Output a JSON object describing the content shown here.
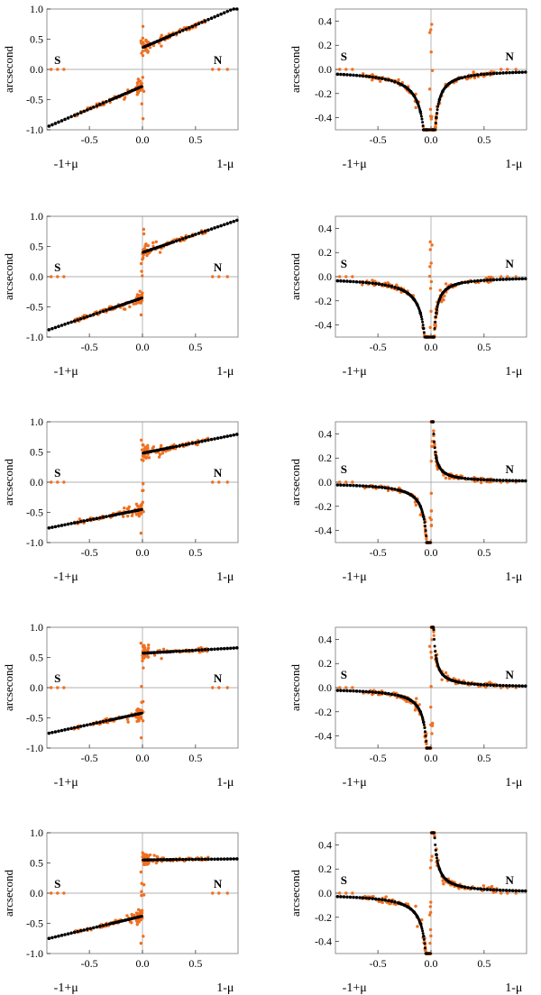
{
  "figure": {
    "ylabel": "arcsecond",
    "left_endpoint": "-1+μ",
    "right_endpoint": "1-μ",
    "south_marker": "S",
    "north_marker": "N",
    "colors": {
      "data": "#f07020",
      "model": "#000000",
      "axis": "#999999",
      "frame": "#777777"
    }
  },
  "chart_data": [
    {
      "type": "scatter",
      "panel": "row1-left",
      "ylabel": "arcsecond",
      "xlim": [
        -0.9,
        0.9
      ],
      "ylim": [
        -1.0,
        1.0
      ],
      "x_ticks": [
        -0.5,
        0.0,
        0.5
      ],
      "x_tick_labels": [
        "-0.5",
        "0.0",
        "0.5"
      ],
      "y_ticks": [
        -1.0,
        -0.5,
        0.0,
        0.5,
        1.0
      ],
      "y_tick_labels": [
        "-1.0",
        "-0.5",
        "0.0",
        "0.5",
        "1.0"
      ],
      "model": {
        "kind": "linear",
        "left_intercept": -0.28,
        "right_intercept": 0.36,
        "slope": 0.75
      },
      "markers": [
        {
          "text": "S",
          "x": -0.8,
          "y": 0.06
        },
        {
          "text": "N",
          "x": 0.71,
          "y": 0.06
        }
      ],
      "xlabel_left": "-1+μ",
      "xlabel_right": "1-μ"
    },
    {
      "type": "scatter",
      "panel": "row1-right",
      "ylabel": "arcsecond",
      "xlim": [
        -0.9,
        0.9
      ],
      "ylim": [
        -0.5,
        0.5
      ],
      "x_ticks": [
        -0.5,
        0.0,
        0.5
      ],
      "x_tick_labels": [
        "-0.5",
        "0.0",
        "0.5"
      ],
      "y_ticks": [
        -0.4,
        -0.2,
        0.0,
        0.2,
        0.4
      ],
      "y_tick_labels": [
        "-0.4",
        "-0.2",
        "0.0",
        "0.2",
        "0.4"
      ],
      "model": {
        "kind": "cusp",
        "left_amp": -0.035,
        "right_amp": -0.02
      },
      "markers": [
        {
          "text": "S",
          "x": -0.82,
          "y": 0.06
        },
        {
          "text": "N",
          "x": 0.74,
          "y": 0.06
        }
      ],
      "xlabel_left": "-1+μ",
      "xlabel_right": "1-μ"
    },
    {
      "type": "scatter",
      "panel": "row2-left",
      "ylabel": "arcsecond",
      "xlim": [
        -0.9,
        0.9
      ],
      "ylim": [
        -1.0,
        1.0
      ],
      "x_ticks": [
        -0.5,
        0.0,
        0.5
      ],
      "x_tick_labels": [
        "-0.5",
        "0.0",
        "0.5"
      ],
      "y_ticks": [
        -1.0,
        -0.5,
        0.0,
        0.5,
        1.0
      ],
      "y_tick_labels": [
        "-1.0",
        "-0.5",
        "0.0",
        "0.5",
        "1.0"
      ],
      "model": {
        "kind": "linear",
        "left_intercept": -0.35,
        "right_intercept": 0.4,
        "slope": 0.6
      },
      "markers": [
        {
          "text": "S",
          "x": -0.8,
          "y": 0.06
        },
        {
          "text": "N",
          "x": 0.71,
          "y": 0.06
        }
      ],
      "xlabel_left": "-1+μ",
      "xlabel_right": "1-μ"
    },
    {
      "type": "scatter",
      "panel": "row2-right",
      "ylabel": "arcsecond",
      "xlim": [
        -0.9,
        0.9
      ],
      "ylim": [
        -0.5,
        0.5
      ],
      "x_ticks": [
        -0.5,
        0.0,
        0.5
      ],
      "x_tick_labels": [
        "-0.5",
        "0.0",
        "0.5"
      ],
      "y_ticks": [
        -0.4,
        -0.2,
        0.0,
        0.2,
        0.4
      ],
      "y_tick_labels": [
        "-0.4",
        "-0.2",
        "0.0",
        "0.2",
        "0.4"
      ],
      "model": {
        "kind": "cusp",
        "left_amp": -0.03,
        "right_amp": -0.015
      },
      "markers": [
        {
          "text": "S",
          "x": -0.82,
          "y": 0.06
        },
        {
          "text": "N",
          "x": 0.74,
          "y": 0.06
        }
      ],
      "xlabel_left": "-1+μ",
      "xlabel_right": "1-μ"
    },
    {
      "type": "scatter",
      "panel": "row3-left",
      "ylabel": "arcsecond",
      "xlim": [
        -0.9,
        0.9
      ],
      "ylim": [
        -1.0,
        1.0
      ],
      "x_ticks": [
        -0.5,
        0.0,
        0.5
      ],
      "x_tick_labels": [
        "-0.5",
        "0.0",
        "0.5"
      ],
      "y_ticks": [
        -1.0,
        -0.5,
        0.0,
        0.5,
        1.0
      ],
      "y_tick_labels": [
        "-1.0",
        "-0.5",
        "0.0",
        "0.5",
        "1.0"
      ],
      "model": {
        "kind": "linear",
        "left_intercept": -0.45,
        "right_intercept": 0.48,
        "slope": 0.35
      },
      "markers": [
        {
          "text": "S",
          "x": -0.8,
          "y": 0.06
        },
        {
          "text": "N",
          "x": 0.71,
          "y": 0.06
        }
      ],
      "xlabel_left": "-1+μ",
      "xlabel_right": "1-μ"
    },
    {
      "type": "scatter",
      "panel": "row3-right",
      "ylabel": "arcsecond",
      "xlim": [
        -0.9,
        0.9
      ],
      "ylim": [
        -0.5,
        0.5
      ],
      "x_ticks": [
        -0.5,
        0.0,
        0.5
      ],
      "x_tick_labels": [
        "-0.5",
        "0.0",
        "0.5"
      ],
      "y_ticks": [
        -0.4,
        -0.2,
        0.0,
        0.2,
        0.4
      ],
      "y_tick_labels": [
        "-0.4",
        "-0.2",
        "0.0",
        "0.2",
        "0.4"
      ],
      "model": {
        "kind": "cusp",
        "left_amp": -0.02,
        "right_amp": 0.01
      },
      "markers": [
        {
          "text": "S",
          "x": -0.82,
          "y": 0.06
        },
        {
          "text": "N",
          "x": 0.74,
          "y": 0.06
        }
      ],
      "xlabel_left": "-1+μ",
      "xlabel_right": "1-μ"
    },
    {
      "type": "scatter",
      "panel": "row4-left",
      "ylabel": "arcsecond",
      "xlim": [
        -0.9,
        0.9
      ],
      "ylim": [
        -1.0,
        1.0
      ],
      "x_ticks": [
        -0.5,
        0.0,
        0.5
      ],
      "x_tick_labels": [
        "-0.5",
        "0.0",
        "0.5"
      ],
      "y_ticks": [
        -1.0,
        -0.5,
        0.0,
        0.5,
        1.0
      ],
      "y_tick_labels": [
        "-1.0",
        "-0.5",
        "0.0",
        "0.5",
        "1.0"
      ],
      "model": {
        "kind": "linear",
        "left_intercept": -0.42,
        "right_intercept": 0.57,
        "slope": 0.1,
        "left_slope": 0.38
      },
      "markers": [
        {
          "text": "S",
          "x": -0.8,
          "y": 0.06
        },
        {
          "text": "N",
          "x": 0.71,
          "y": 0.06
        }
      ],
      "xlabel_left": "-1+μ",
      "xlabel_right": "1-μ"
    },
    {
      "type": "scatter",
      "panel": "row4-right",
      "ylabel": "arcsecond",
      "xlim": [
        -0.9,
        0.9
      ],
      "ylim": [
        -0.5,
        0.5
      ],
      "x_ticks": [
        -0.5,
        0.0,
        0.5
      ],
      "x_tick_labels": [
        "-0.5",
        "0.0",
        "0.5"
      ],
      "y_ticks": [
        -0.4,
        -0.2,
        0.0,
        0.2,
        0.4
      ],
      "y_tick_labels": [
        "-0.4",
        "-0.2",
        "0.0",
        "0.2",
        "0.4"
      ],
      "model": {
        "kind": "antisym",
        "left_amp": -0.02,
        "right_amp": 0.012
      },
      "markers": [
        {
          "text": "S",
          "x": -0.82,
          "y": 0.06
        },
        {
          "text": "N",
          "x": 0.74,
          "y": 0.06
        }
      ],
      "xlabel_left": "-1+μ",
      "xlabel_right": "1-μ"
    },
    {
      "type": "scatter",
      "panel": "row5-left",
      "ylabel": "arcsecond",
      "xlim": [
        -0.9,
        0.9
      ],
      "ylim": [
        -1.0,
        1.0
      ],
      "x_ticks": [
        -0.5,
        0.0,
        0.5
      ],
      "x_tick_labels": [
        "-0.5",
        "0.0",
        "0.5"
      ],
      "y_ticks": [
        -1.0,
        -0.5,
        0.0,
        0.5,
        1.0
      ],
      "y_tick_labels": [
        "-1.0",
        "-0.5",
        "0.0",
        "0.5",
        "1.0"
      ],
      "model": {
        "kind": "linear",
        "left_intercept": -0.38,
        "right_intercept": 0.55,
        "slope": 0.02,
        "left_slope": 0.42
      },
      "markers": [
        {
          "text": "S",
          "x": -0.8,
          "y": 0.06
        },
        {
          "text": "N",
          "x": 0.71,
          "y": 0.06
        }
      ],
      "xlabel_left": "-1+μ",
      "xlabel_right": "1-μ"
    },
    {
      "type": "scatter",
      "panel": "row5-right",
      "ylabel": "arcsecond",
      "xlim": [
        -0.9,
        0.9
      ],
      "ylim": [
        -0.5,
        0.5
      ],
      "x_ticks": [
        -0.5,
        0.0,
        0.5
      ],
      "x_tick_labels": [
        "-0.5",
        "0.0",
        "0.5"
      ],
      "y_ticks": [
        -0.4,
        -0.2,
        0.0,
        0.2,
        0.4
      ],
      "y_tick_labels": [
        "-0.4",
        "-0.2",
        "0.0",
        "0.2",
        "0.4"
      ],
      "model": {
        "kind": "antisym",
        "left_amp": -0.025,
        "right_amp": 0.016
      },
      "markers": [
        {
          "text": "S",
          "x": -0.82,
          "y": 0.06
        },
        {
          "text": "N",
          "x": 0.74,
          "y": 0.06
        }
      ],
      "xlabel_left": "-1+μ",
      "xlabel_right": "1-μ"
    }
  ]
}
